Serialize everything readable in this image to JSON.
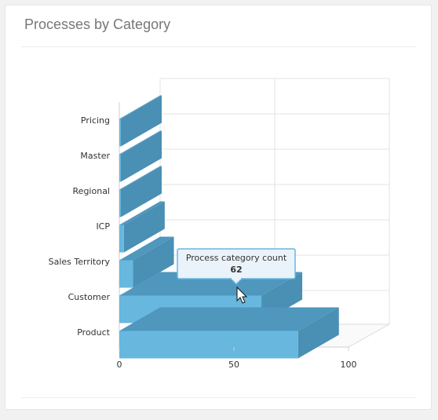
{
  "panel": {
    "title": "Processes by Category"
  },
  "chart_data": {
    "type": "bar",
    "orientation": "horizontal",
    "style": "3d",
    "categories": [
      "Pricing",
      "Master",
      "Regional",
      "ICP",
      "Sales Territory",
      "Customer",
      "Product"
    ],
    "values": [
      0,
      0,
      0,
      2,
      6,
      62,
      78
    ],
    "xlim": [
      0,
      100
    ],
    "xticks": [
      "0",
      "50",
      "100"
    ],
    "grid": true,
    "colors": {
      "bar_front": "#67b7df",
      "bar_top": "#4f97bd",
      "bar_side": "#4a8fb4"
    },
    "tooltip": {
      "label": "Process category count",
      "value": "62",
      "category": "Customer"
    }
  }
}
